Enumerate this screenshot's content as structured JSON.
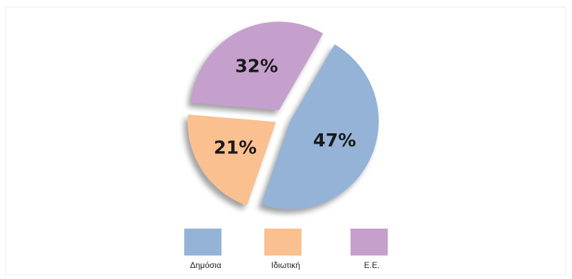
{
  "chart_data": {
    "type": "pie",
    "categories": [
      "Δημόσια",
      "Ιδιωτική",
      "Ε.Ε."
    ],
    "values": [
      47,
      21,
      32
    ],
    "value_labels": [
      "47%",
      "21%",
      "32%"
    ],
    "colors": [
      "#95b3d7",
      "#fac090",
      "#c6a0cd"
    ],
    "exploded": true,
    "legend": "bottom"
  }
}
